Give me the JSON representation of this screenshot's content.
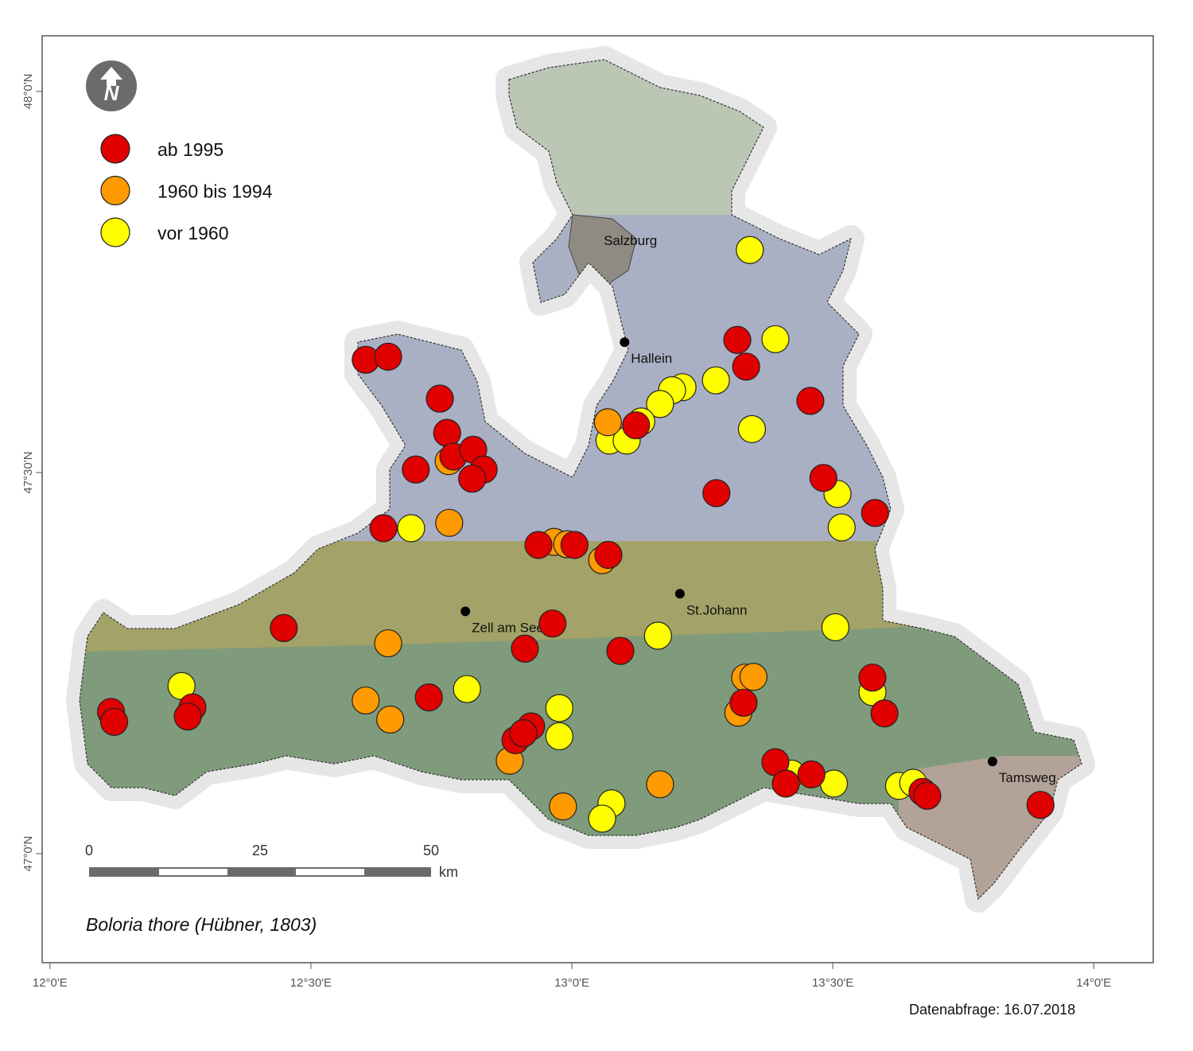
{
  "title": "Boloria thore (Hübner, 1803)",
  "query_date": "Datenabfrage: 16.07.2018",
  "north_arrow": "N",
  "xlim": [
    11.985,
    14.114
  ],
  "ylim": [
    46.857,
    48.073
  ],
  "xticks": [
    {
      "value": 12,
      "label": "12°0'E"
    },
    {
      "value": 12.5,
      "label": "12°30'E"
    },
    {
      "value": 13,
      "label": "13°0'E"
    },
    {
      "value": 13.5,
      "label": "13°30'E"
    },
    {
      "value": 14,
      "label": "14°0'E"
    }
  ],
  "yticks": [
    {
      "value": 48,
      "label": "48°0'N"
    },
    {
      "value": 47.5,
      "label": "47°30'N"
    },
    {
      "value": 47,
      "label": "47°0'N"
    }
  ],
  "scale_bar": {
    "ticks": [
      0,
      25,
      50
    ],
    "unit": "km"
  },
  "places": [
    {
      "name": "Salzburg",
      "lon": 13.119,
      "lat": 47.805,
      "marker": false
    },
    {
      "name": "Hallein",
      "lon": 13.101,
      "lat": 47.671,
      "marker": true
    },
    {
      "name": "Zell am See",
      "lon": 12.796,
      "lat": 47.318,
      "marker": true
    },
    {
      "name": "St.Johann",
      "lon": 13.207,
      "lat": 47.341,
      "marker": true
    },
    {
      "name": "Tamsweg",
      "lon": 13.806,
      "lat": 47.121,
      "marker": true
    }
  ],
  "series": [
    {
      "name": "ab 1995",
      "color": "#e00000",
      "points": [
        [
          12.605,
          47.648
        ],
        [
          12.648,
          47.652
        ],
        [
          12.747,
          47.597
        ],
        [
          12.761,
          47.552
        ],
        [
          12.773,
          47.521
        ],
        [
          12.811,
          47.53
        ],
        [
          12.831,
          47.504
        ],
        [
          12.809,
          47.492
        ],
        [
          12.701,
          47.504
        ],
        [
          12.639,
          47.427
        ],
        [
          12.936,
          47.405
        ],
        [
          13.005,
          47.405
        ],
        [
          13.07,
          47.392
        ],
        [
          13.123,
          47.562
        ],
        [
          13.317,
          47.674
        ],
        [
          13.334,
          47.639
        ],
        [
          13.457,
          47.594
        ],
        [
          13.482,
          47.493
        ],
        [
          13.581,
          47.447
        ],
        [
          13.277,
          47.473
        ],
        [
          12.448,
          47.296
        ],
        [
          12.963,
          47.302
        ],
        [
          12.91,
          47.269
        ],
        [
          13.093,
          47.266
        ],
        [
          12.726,
          47.205
        ],
        [
          12.273,
          47.192
        ],
        [
          12.264,
          47.18
        ],
        [
          12.117,
          47.186
        ],
        [
          12.123,
          47.173
        ],
        [
          12.892,
          47.149
        ],
        [
          12.922,
          47.167
        ],
        [
          12.907,
          47.158
        ],
        [
          13.329,
          47.198
        ],
        [
          13.39,
          47.12
        ],
        [
          13.41,
          47.092
        ],
        [
          13.459,
          47.104
        ],
        [
          13.576,
          47.231
        ],
        [
          13.599,
          47.184
        ],
        [
          13.672,
          47.081
        ],
        [
          13.681,
          47.076
        ],
        [
          13.898,
          47.064
        ]
      ]
    },
    {
      "name": "1960 bis 1994",
      "color": "#ff9a00",
      "points": [
        [
          12.764,
          47.515
        ],
        [
          12.765,
          47.434
        ],
        [
          12.966,
          47.409
        ],
        [
          12.991,
          47.406
        ],
        [
          13.058,
          47.385
        ],
        [
          13.069,
          47.566
        ],
        [
          12.648,
          47.276
        ],
        [
          12.605,
          47.201
        ],
        [
          12.652,
          47.176
        ],
        [
          12.881,
          47.122
        ],
        [
          12.983,
          47.062
        ],
        [
          13.169,
          47.091
        ],
        [
          13.332,
          47.231
        ],
        [
          13.348,
          47.232
        ],
        [
          13.319,
          47.185
        ]
      ]
    },
    {
      "name": "vor 1960",
      "color": "#ffff00",
      "points": [
        [
          13.341,
          47.792
        ],
        [
          13.39,
          47.675
        ],
        [
          13.276,
          47.621
        ],
        [
          13.212,
          47.612
        ],
        [
          13.192,
          47.608
        ],
        [
          13.169,
          47.59
        ],
        [
          13.345,
          47.557
        ],
        [
          13.072,
          47.542
        ],
        [
          13.105,
          47.542
        ],
        [
          13.133,
          47.567
        ],
        [
          12.692,
          47.427
        ],
        [
          13.509,
          47.472
        ],
        [
          13.517,
          47.428
        ],
        [
          13.165,
          47.286
        ],
        [
          13.505,
          47.297
        ],
        [
          12.252,
          47.22
        ],
        [
          12.799,
          47.216
        ],
        [
          12.976,
          47.191
        ],
        [
          12.976,
          47.154
        ],
        [
          13.576,
          47.212
        ],
        [
          13.502,
          47.092
        ],
        [
          13.421,
          47.105
        ],
        [
          13.627,
          47.089
        ],
        [
          13.654,
          47.093
        ],
        [
          13.076,
          47.066
        ],
        [
          13.058,
          47.046
        ]
      ]
    }
  ]
}
